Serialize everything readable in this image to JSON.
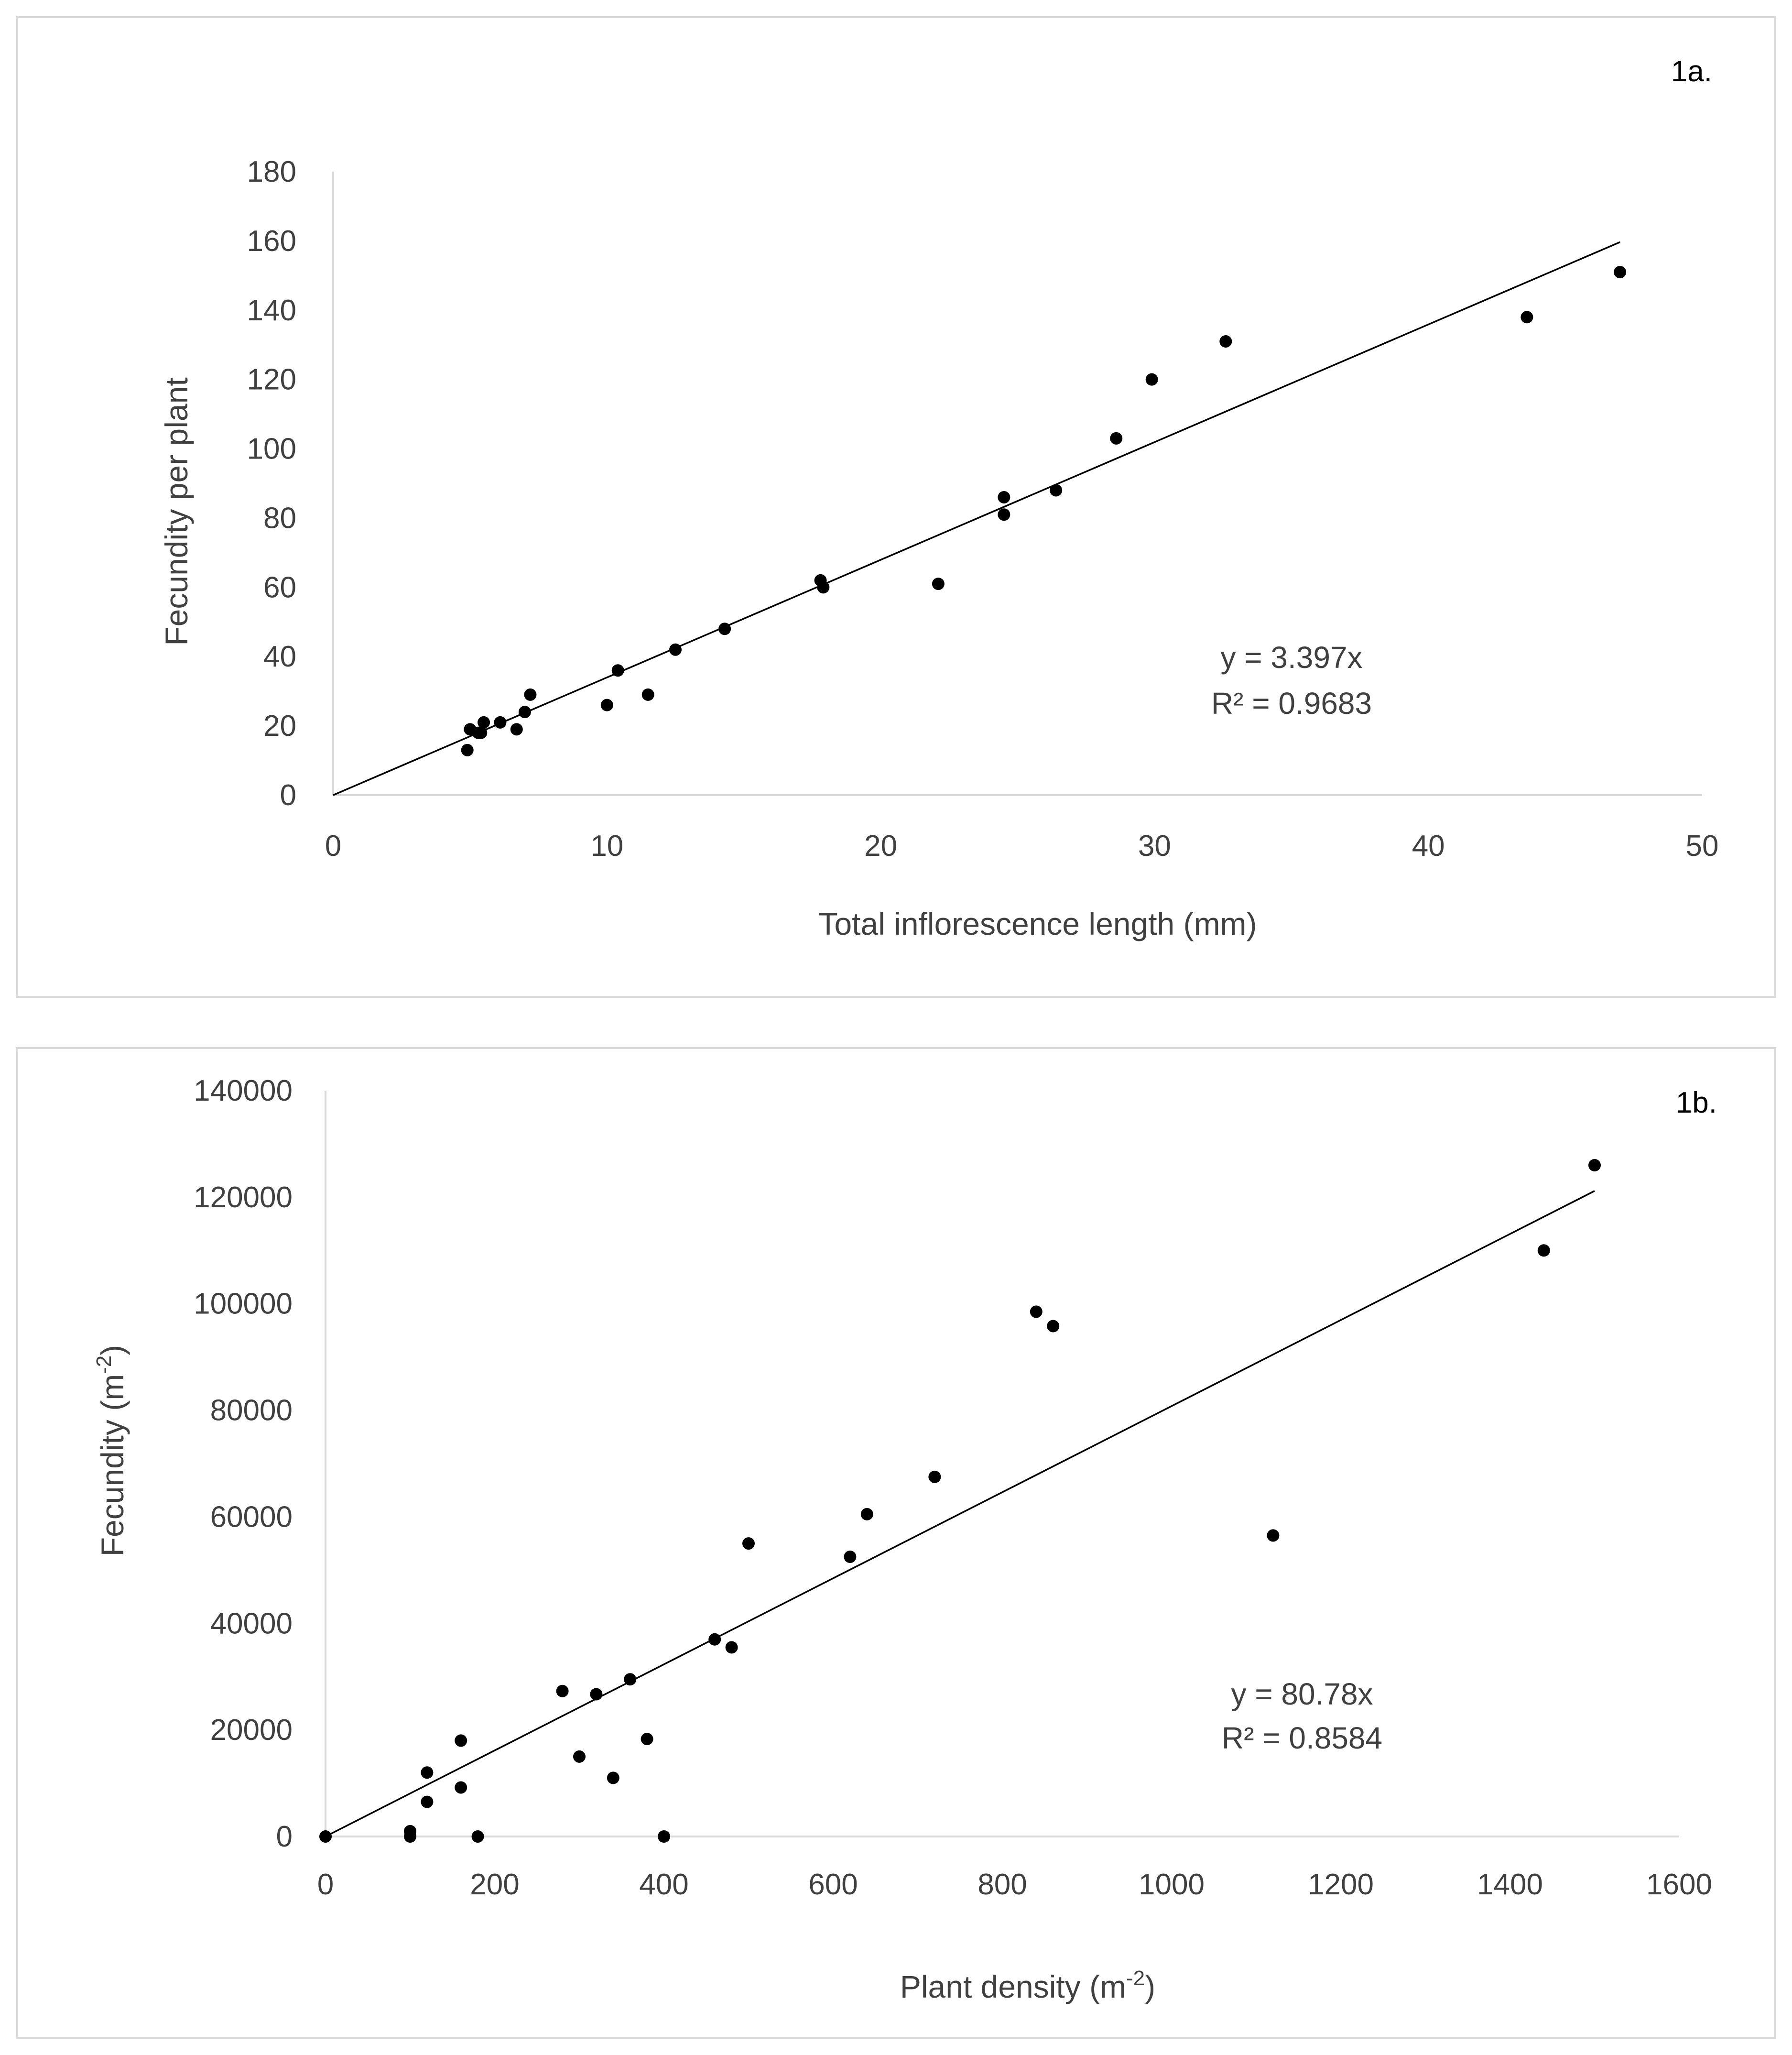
{
  "chart_data": [
    {
      "type": "scatter",
      "panel_label": "1a.",
      "xlabel": "Total inflorescence length (mm)",
      "ylabel": "Fecundity per plant",
      "xlim": [
        0,
        50
      ],
      "ylim": [
        0,
        180
      ],
      "x_ticks": [
        "0",
        "10",
        "20",
        "30",
        "40",
        "50"
      ],
      "y_ticks": [
        "0",
        "20",
        "40",
        "60",
        "80",
        "100",
        "120",
        "140",
        "160",
        "180"
      ],
      "trendline": {
        "slope": 3.397,
        "x_end": 47
      },
      "equation": "y = 3.397x",
      "r_squared": "R² = 0.9683",
      "points": [
        [
          4.9,
          13
        ],
        [
          5.0,
          19
        ],
        [
          5.3,
          18
        ],
        [
          5.4,
          18
        ],
        [
          5.5,
          21
        ],
        [
          6.1,
          21
        ],
        [
          6.7,
          19
        ],
        [
          7.0,
          24
        ],
        [
          7.2,
          29
        ],
        [
          10.0,
          26
        ],
        [
          10.4,
          36
        ],
        [
          11.5,
          29
        ],
        [
          12.5,
          42
        ],
        [
          14.3,
          48
        ],
        [
          17.8,
          62
        ],
        [
          17.9,
          60
        ],
        [
          22.1,
          61
        ],
        [
          24.5,
          86
        ],
        [
          24.5,
          81
        ],
        [
          26.4,
          88
        ],
        [
          28.6,
          103
        ],
        [
          29.9,
          120
        ],
        [
          32.6,
          131
        ],
        [
          43.6,
          138
        ],
        [
          47.0,
          151
        ]
      ]
    },
    {
      "type": "scatter",
      "panel_label": "1b.",
      "xlabel_main": "Plant density (m",
      "xlabel_sup": "-2",
      "xlabel_end": ")",
      "ylabel_main": "Fecundity (m",
      "ylabel_sup": "-2",
      "ylabel_end": ")",
      "xlim": [
        0,
        1600
      ],
      "ylim": [
        0,
        140000
      ],
      "x_ticks": [
        "0",
        "200",
        "400",
        "600",
        "800",
        "1000",
        "1200",
        "1400",
        "1600"
      ],
      "y_ticks": [
        "0",
        "20000",
        "40000",
        "60000",
        "80000",
        "100000",
        "120000",
        "140000"
      ],
      "trendline": {
        "slope": 80.78,
        "x_end": 1500
      },
      "equation": "y = 80.78x",
      "r_squared": "R² = 0.8584",
      "points": [
        [
          0,
          0
        ],
        [
          100,
          1000
        ],
        [
          100,
          0
        ],
        [
          120,
          12000
        ],
        [
          120,
          6500
        ],
        [
          160,
          18000
        ],
        [
          160,
          9200
        ],
        [
          180,
          0
        ],
        [
          280,
          27300
        ],
        [
          300,
          15000
        ],
        [
          320,
          26700
        ],
        [
          340,
          11000
        ],
        [
          360,
          29500
        ],
        [
          380,
          18300
        ],
        [
          400,
          0
        ],
        [
          460,
          37000
        ],
        [
          480,
          35500
        ],
        [
          500,
          55000
        ],
        [
          620,
          52500
        ],
        [
          640,
          60500
        ],
        [
          720,
          67500
        ],
        [
          840,
          98500
        ],
        [
          860,
          95800
        ],
        [
          1120,
          56500
        ],
        [
          1440,
          110000
        ],
        [
          1500,
          126000
        ]
      ]
    }
  ]
}
